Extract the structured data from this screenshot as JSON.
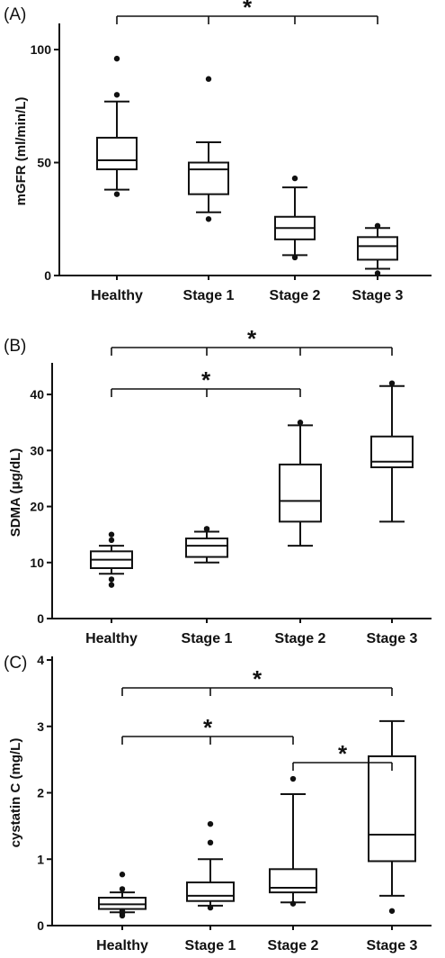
{
  "chart_data": [
    {
      "type": "box",
      "panel_label": "(A)",
      "ylabel": "mGFR (ml/min/L)",
      "ylim": [
        0,
        110
      ],
      "yticks": [
        0,
        50,
        100
      ],
      "categories": [
        "Healthy",
        "Stage 1",
        "Stage 2",
        "Stage 3"
      ],
      "boxes": [
        {
          "whisker_low": 38,
          "q1": 47,
          "median": 51,
          "q3": 61,
          "whisker_high": 77,
          "outliers": [
            36,
            80,
            96
          ]
        },
        {
          "whisker_low": 28,
          "q1": 36,
          "median": 47,
          "q3": 50,
          "whisker_high": 59,
          "outliers": [
            25,
            87
          ]
        },
        {
          "whisker_low": 9,
          "q1": 16,
          "median": 21,
          "q3": 26,
          "whisker_high": 39,
          "outliers": [
            8,
            43
          ]
        },
        {
          "whisker_low": 3,
          "q1": 7,
          "median": 13,
          "q3": 17,
          "whisker_high": 21,
          "outliers": [
            1,
            22
          ]
        }
      ],
      "significance": [
        {
          "from": 0,
          "to": 3,
          "mid_ticks": [
            1,
            2
          ],
          "label": "*"
        }
      ]
    },
    {
      "type": "box",
      "panel_label": "(B)",
      "ylabel": "SDMA (μg/dL)",
      "ylim": [
        0,
        45
      ],
      "yticks": [
        0,
        10,
        20,
        30,
        40
      ],
      "categories": [
        "Healthy",
        "Stage 1",
        "Stage 2",
        "Stage 3"
      ],
      "boxes": [
        {
          "whisker_low": 8,
          "q1": 9,
          "median": 10.5,
          "q3": 12,
          "whisker_high": 13,
          "outliers": [
            6,
            7,
            14,
            15
          ]
        },
        {
          "whisker_low": 10,
          "q1": 11,
          "median": 13,
          "q3": 14.3,
          "whisker_high": 15.5,
          "outliers": [
            16,
            16
          ]
        },
        {
          "whisker_low": 13,
          "q1": 17.3,
          "median": 21,
          "q3": 27.5,
          "whisker_high": 34.5,
          "outliers": [
            35
          ]
        },
        {
          "whisker_low": 17.3,
          "q1": 27,
          "median": 28,
          "q3": 32.5,
          "whisker_high": 41.5,
          "outliers": [
            42
          ]
        }
      ],
      "significance": [
        {
          "from": 0,
          "to": 3,
          "mid_ticks": [
            1,
            2
          ],
          "label": "*"
        },
        {
          "from": 0,
          "to": 2,
          "mid_ticks": [
            1
          ],
          "label": "*"
        }
      ]
    },
    {
      "type": "box",
      "panel_label": "(C)",
      "ylabel": "cystatin C (mg/L)",
      "ylim": [
        0,
        4
      ],
      "yticks": [
        0,
        1,
        2,
        3,
        4
      ],
      "categories": [
        "Healthy",
        "Stage 1",
        "Stage 2",
        "Stage 3"
      ],
      "boxes": [
        {
          "whisker_low": 0.2,
          "q1": 0.25,
          "median": 0.32,
          "q3": 0.42,
          "whisker_high": 0.5,
          "outliers": [
            0.15,
            0.18,
            0.22,
            0.55,
            0.77
          ]
        },
        {
          "whisker_low": 0.3,
          "q1": 0.37,
          "median": 0.45,
          "q3": 0.65,
          "whisker_high": 1.0,
          "outliers": [
            0.27,
            1.25,
            1.53
          ]
        },
        {
          "whisker_low": 0.35,
          "q1": 0.5,
          "median": 0.57,
          "q3": 0.85,
          "whisker_high": 1.98,
          "outliers": [
            0.33,
            2.21
          ]
        },
        {
          "whisker_low": 0.45,
          "q1": 0.97,
          "median": 1.37,
          "q3": 2.55,
          "whisker_high": 3.08,
          "outliers": [
            0.22
          ]
        }
      ],
      "significance": [
        {
          "from": 0,
          "to": 3,
          "mid_ticks": [
            1
          ],
          "label": "*"
        },
        {
          "from": 0,
          "to": 2,
          "mid_ticks": [
            1
          ],
          "label": "*"
        },
        {
          "from": 2,
          "to": 3,
          "mid_ticks": [],
          "label": "*"
        }
      ]
    }
  ]
}
